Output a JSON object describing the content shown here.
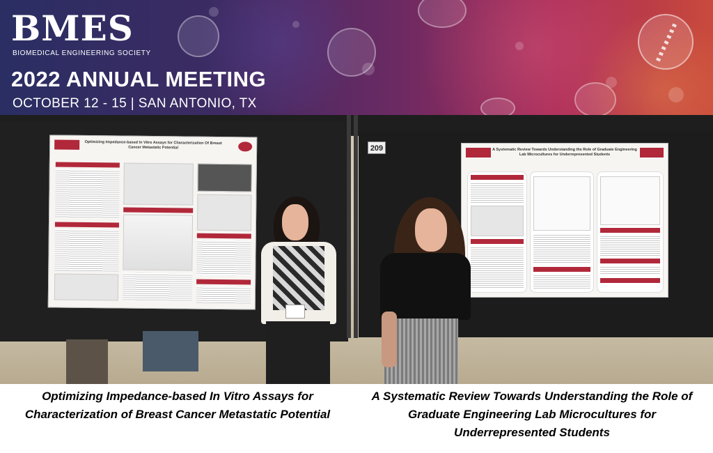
{
  "banner": {
    "logo_text": "BMES",
    "tagline": "BIOMEDICAL ENGINEERING SOCIETY",
    "meeting_title": "2022 ANNUAL MEETING",
    "meeting_dates": "OCTOBER 12 - 15 | SAN ANTONIO, TX"
  },
  "photo": {
    "left_poster_title": "Optimizing Impedance-based In Vitro Assays for Characterization Of Breast Cancer Metastatic Potential",
    "right_poster_title": "A Systematic Review Towards Understanding the Role of Graduate Engineering Lab Microcultures for Underrepresented Students",
    "booth_number": "209"
  },
  "captions": {
    "left": "Optimizing Impedance-based In Vitro Assays for Characterization of Breast Cancer Metastatic Potential",
    "right": "A Systematic Review Towards Understanding the Role of Graduate Engineering Lab Microcultures for Underrepresented Students"
  }
}
